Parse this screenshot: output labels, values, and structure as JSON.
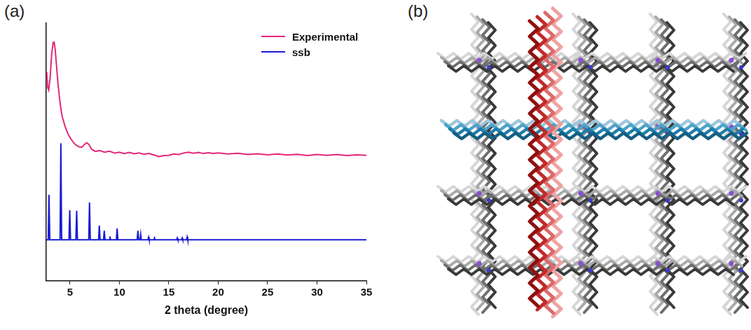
{
  "chart_data": {
    "type": "line",
    "panel": "(a)",
    "x_label": "2 theta (degree)",
    "xlim": [
      2.6,
      35
    ],
    "xticks": [
      5,
      10,
      15,
      20,
      25,
      30,
      35
    ],
    "ylim": [
      0,
      100
    ],
    "yticks": [],
    "tick_labels": "x",
    "grid": false,
    "legend": "upper right",
    "series": [
      {
        "name": "Experimental",
        "color": "#e5277b",
        "x": [
          2.65,
          2.75,
          2.85,
          3.0,
          3.15,
          3.3,
          3.4,
          3.5,
          3.65,
          3.8,
          4.0,
          4.2,
          4.5,
          4.8,
          5.1,
          5.5,
          5.9,
          6.2,
          6.5,
          6.7,
          6.9,
          7.2,
          7.6,
          8,
          8.5,
          9,
          9.5,
          10,
          10.5,
          11,
          11.5,
          12,
          12.5,
          13,
          13.5,
          14,
          14.5,
          15,
          15.5,
          16,
          16.5,
          17,
          17.5,
          18,
          18.5,
          19,
          19.5,
          20,
          21,
          22,
          23,
          24,
          25,
          26,
          27,
          28,
          29,
          30,
          31,
          32,
          33,
          34,
          35
        ],
        "values": [
          81,
          75,
          74,
          79,
          88,
          92.5,
          92.6,
          90,
          83,
          76,
          69,
          64,
          60,
          57,
          55,
          53,
          52,
          51.8,
          53,
          53.6,
          53,
          51,
          50.2,
          50.6,
          49.9,
          50.3,
          49.6,
          49.9,
          49.4,
          49.8,
          49.3,
          49.6,
          49.1,
          49.4,
          48.8,
          48.2,
          48.6,
          48.7,
          49.2,
          49.0,
          49.6,
          49.9,
          49.5,
          49.8,
          49.4,
          49.7,
          49.4,
          49.6,
          49.2,
          49.5,
          49.0,
          49.3,
          48.9,
          49.2,
          48.8,
          49.1,
          48.6,
          49.0,
          48.7,
          49.0,
          48.6,
          48.9,
          48.7
        ]
      },
      {
        "name": "ssb",
        "color": "#1c1cd6",
        "x": [
          2.6,
          2.8,
          2.88,
          2.96,
          4.0,
          4.08,
          4.16,
          4.9,
          4.98,
          5.06,
          5.6,
          5.68,
          5.76,
          6.9,
          6.98,
          7.06,
          7.9,
          7.97,
          8.05,
          8.4,
          8.47,
          8.55,
          9.0,
          9.05,
          9.1,
          9.7,
          9.77,
          9.85,
          11.8,
          11.88,
          11.96,
          12.1,
          12.16,
          12.22,
          12.9,
          12.96,
          13.02,
          13.5,
          13.56,
          13.62,
          15.8,
          15.86,
          15.92,
          16.3,
          16.36,
          16.42,
          16.8,
          16.86,
          16.92,
          35
        ],
        "values": [
          15.9,
          15.9,
          33.4,
          15.9,
          15.9,
          53.4,
          15.9,
          15.9,
          27.4,
          15.9,
          15.9,
          27.2,
          15.9,
          15.9,
          30.4,
          15.9,
          15.9,
          21.4,
          15.9,
          15.9,
          19.4,
          15.9,
          15.9,
          17.2,
          15.9,
          15.9,
          20.3,
          15.9,
          15.9,
          19.4,
          15.9,
          15.9,
          18.0,
          15.9,
          15.9,
          16.9,
          15.9,
          15.9,
          16.6,
          15.9,
          15.9,
          16.6,
          15.9,
          15.9,
          16.6,
          15.9,
          15.9,
          17.0,
          15.9,
          15.9
        ]
      }
    ]
  },
  "structure": {
    "panel": "(b)"
  }
}
